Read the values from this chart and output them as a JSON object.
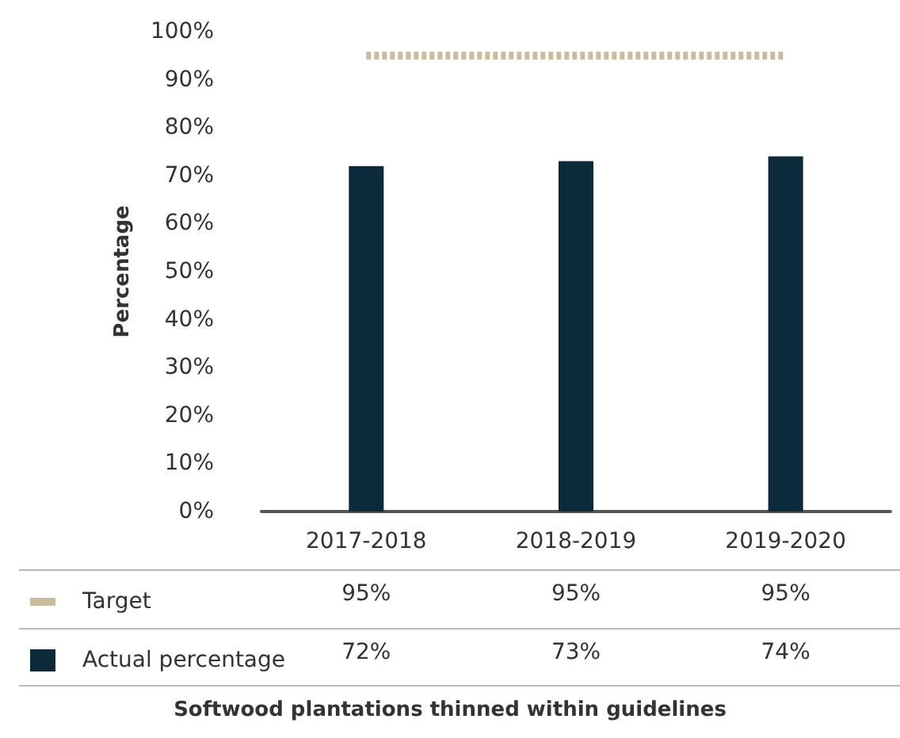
{
  "chart_data": {
    "type": "bar",
    "title": "Softwood plantations thinned within guidelines",
    "ylabel": "Percentage",
    "categories": [
      "2017-2018",
      "2018-2019",
      "2019-2020"
    ],
    "series": [
      {
        "name": "Target",
        "type": "line",
        "color": "#c9bc9c",
        "line_style": "dotted",
        "marker": "none",
        "values": [
          95,
          95,
          95
        ],
        "value_labels": [
          "95%",
          "95%",
          "95%"
        ]
      },
      {
        "name": "Actual percentage",
        "color": "#0b2b3b",
        "values": [
          72,
          73,
          74
        ],
        "value_labels": [
          "72%",
          "73%",
          "74%"
        ]
      }
    ],
    "ylim": [
      0,
      100
    ],
    "yticks": [
      {
        "value": 0,
        "label": "0%"
      },
      {
        "value": 10,
        "label": "10%"
      },
      {
        "value": 20,
        "label": "20%"
      },
      {
        "value": 30,
        "label": "30%"
      },
      {
        "value": 40,
        "label": "40%"
      },
      {
        "value": 50,
        "label": "50%"
      },
      {
        "value": 60,
        "label": "60%"
      },
      {
        "value": 70,
        "label": "70%"
      },
      {
        "value": 80,
        "label": "80%"
      },
      {
        "value": 90,
        "label": "90%"
      },
      {
        "value": 100,
        "label": "100%"
      }
    ],
    "grid": false,
    "legend": "bottom"
  }
}
